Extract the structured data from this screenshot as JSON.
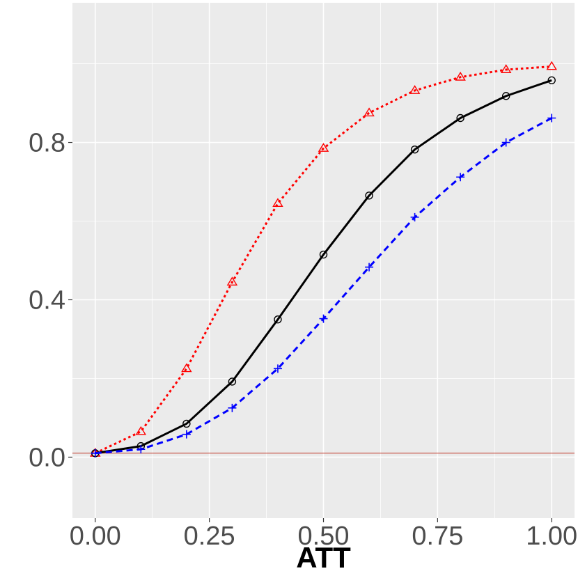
{
  "chart_data": {
    "type": "line",
    "title": "",
    "xlabel": "ATT",
    "ylabel": "",
    "xlim": [
      -0.05,
      1.05
    ],
    "ylim": [
      -0.155,
      1.155
    ],
    "grid": true,
    "legend": "none",
    "x_ticks": [
      0.0,
      0.25,
      0.5,
      0.75,
      1.0
    ],
    "x_tick_labels": [
      "0.00",
      "0.25",
      "0.50",
      "0.75",
      "1.00"
    ],
    "y_ticks": [
      0.0,
      0.4,
      0.8
    ],
    "y_tick_labels": [
      "0.0",
      "0.4",
      "0.8"
    ],
    "reference_line": {
      "y": 0.01,
      "color": "#c0392b"
    },
    "x": [
      0.0,
      0.1,
      0.2,
      0.3,
      0.4,
      0.5,
      0.6,
      0.7,
      0.8,
      0.9,
      1.0
    ],
    "series": [
      {
        "color": "#ff0000",
        "line_style": "dotted",
        "marker": "triangle",
        "values": [
          0.01,
          0.065,
          0.225,
          0.445,
          0.645,
          0.785,
          0.875,
          0.932,
          0.966,
          0.985,
          0.993
        ]
      },
      {
        "color": "#000000",
        "line_style": "solid",
        "marker": "circle",
        "values": [
          0.01,
          0.028,
          0.085,
          0.192,
          0.35,
          0.515,
          0.665,
          0.782,
          0.862,
          0.918,
          0.958
        ]
      },
      {
        "color": "#0000ff",
        "line_style": "dashed",
        "marker": "plus",
        "values": [
          0.01,
          0.02,
          0.058,
          0.125,
          0.225,
          0.352,
          0.483,
          0.61,
          0.712,
          0.8,
          0.862
        ]
      }
    ]
  }
}
